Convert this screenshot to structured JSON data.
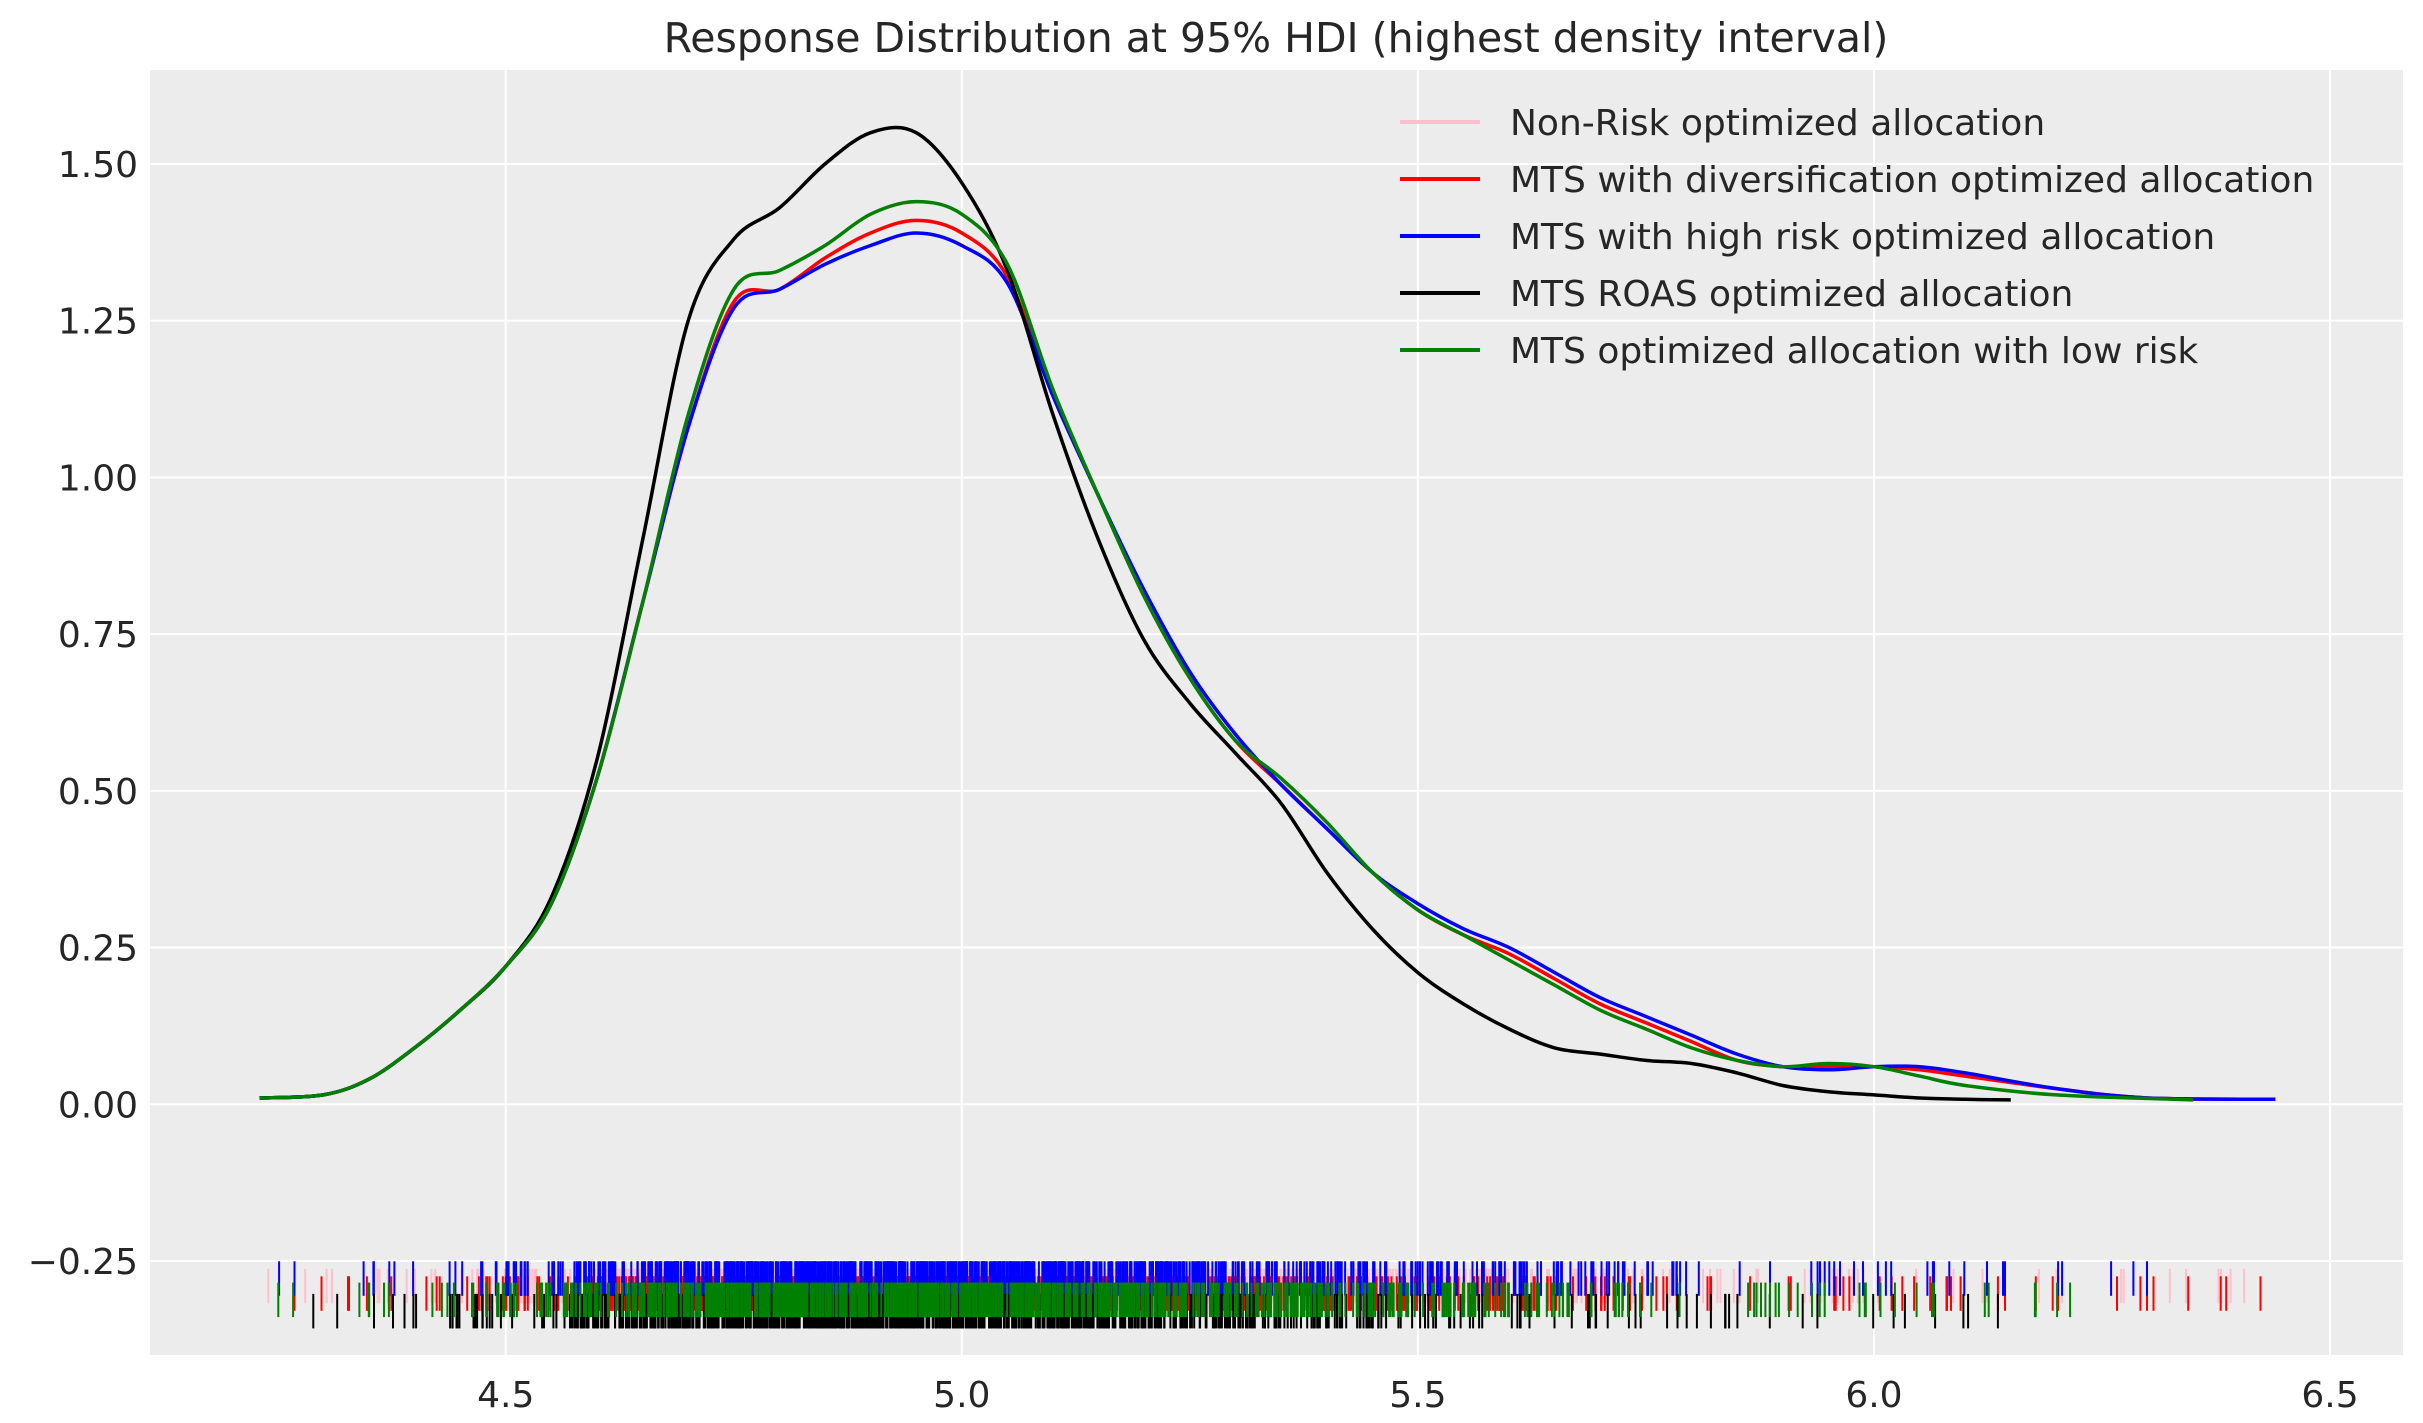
{
  "chart_data": {
    "type": "line",
    "title": "Response Distribution at 95% HDI (highest density interval)",
    "xlabel": "",
    "ylabel": "",
    "xlim": [
      4.11,
      6.58
    ],
    "ylim": [
      -0.4,
      1.65
    ],
    "grid": true,
    "legend_position": "top-right",
    "x_ticks": [
      {
        "value": 4.5,
        "label": "4.5"
      },
      {
        "value": 5.0,
        "label": "5.0"
      },
      {
        "value": 5.5,
        "label": "5.5"
      },
      {
        "value": 6.0,
        "label": "6.0"
      },
      {
        "value": 6.5,
        "label": "6.5"
      }
    ],
    "y_ticks": [
      {
        "value": -0.25,
        "label": "−0.25"
      },
      {
        "value": 0.0,
        "label": "0.00"
      },
      {
        "value": 0.25,
        "label": "0.25"
      },
      {
        "value": 0.5,
        "label": "0.50"
      },
      {
        "value": 0.75,
        "label": "0.75"
      },
      {
        "value": 1.0,
        "label": "1.00"
      },
      {
        "value": 1.25,
        "label": "1.25"
      },
      {
        "value": 1.5,
        "label": "1.50"
      }
    ],
    "series": [
      {
        "name": "Non-Risk optimized allocation",
        "color": "#ffc0cb",
        "rug_offset": 0.0,
        "x": [
          4.23,
          4.3,
          4.35,
          4.4,
          4.45,
          4.5,
          4.55,
          4.6,
          4.65,
          4.7,
          4.75,
          4.8,
          4.85,
          4.9,
          4.95,
          5.0,
          5.05,
          5.1,
          5.15,
          5.2,
          5.25,
          5.3,
          5.35,
          5.4,
          5.45,
          5.5,
          5.55,
          5.6,
          5.65,
          5.7,
          5.75,
          5.8,
          5.85,
          5.9,
          5.95,
          6.0,
          6.05,
          6.1,
          6.2,
          6.3,
          6.44
        ],
        "y": [
          0.01,
          0.015,
          0.04,
          0.09,
          0.15,
          0.22,
          0.32,
          0.52,
          0.8,
          1.08,
          1.28,
          1.3,
          1.35,
          1.39,
          1.41,
          1.39,
          1.32,
          1.13,
          0.97,
          0.81,
          0.68,
          0.58,
          0.51,
          0.44,
          0.37,
          0.31,
          0.27,
          0.24,
          0.2,
          0.16,
          0.13,
          0.1,
          0.07,
          0.06,
          0.06,
          0.06,
          0.055,
          0.045,
          0.025,
          0.01,
          0.008
        ]
      },
      {
        "name": "MTS with diversification optimized allocation",
        "color": "#ff0000",
        "rug_offset": -0.012,
        "x": [
          4.23,
          4.3,
          4.35,
          4.4,
          4.45,
          4.5,
          4.55,
          4.6,
          4.65,
          4.7,
          4.75,
          4.8,
          4.85,
          4.9,
          4.95,
          5.0,
          5.05,
          5.1,
          5.15,
          5.2,
          5.25,
          5.3,
          5.35,
          5.4,
          5.45,
          5.5,
          5.55,
          5.6,
          5.65,
          5.7,
          5.75,
          5.8,
          5.85,
          5.9,
          5.95,
          6.0,
          6.05,
          6.1,
          6.2,
          6.3,
          6.44
        ],
        "y": [
          0.01,
          0.015,
          0.04,
          0.09,
          0.15,
          0.22,
          0.32,
          0.52,
          0.8,
          1.08,
          1.28,
          1.3,
          1.35,
          1.39,
          1.41,
          1.39,
          1.32,
          1.13,
          0.97,
          0.81,
          0.68,
          0.58,
          0.51,
          0.44,
          0.37,
          0.31,
          0.27,
          0.24,
          0.2,
          0.16,
          0.13,
          0.1,
          0.07,
          0.06,
          0.06,
          0.06,
          0.055,
          0.045,
          0.025,
          0.01,
          0.008
        ]
      },
      {
        "name": "MTS with high risk optimized allocation",
        "color": "#0000ff",
        "rug_offset": 0.012,
        "x": [
          4.23,
          4.3,
          4.35,
          4.4,
          4.45,
          4.5,
          4.55,
          4.6,
          4.65,
          4.7,
          4.75,
          4.8,
          4.85,
          4.9,
          4.95,
          5.0,
          5.05,
          5.1,
          5.15,
          5.2,
          5.25,
          5.3,
          5.35,
          5.4,
          5.45,
          5.5,
          5.55,
          5.6,
          5.65,
          5.7,
          5.75,
          5.8,
          5.85,
          5.9,
          5.95,
          6.0,
          6.05,
          6.1,
          6.2,
          6.3,
          6.44
        ],
        "y": [
          0.01,
          0.015,
          0.04,
          0.09,
          0.15,
          0.22,
          0.32,
          0.52,
          0.8,
          1.08,
          1.27,
          1.3,
          1.34,
          1.37,
          1.39,
          1.37,
          1.31,
          1.13,
          0.97,
          0.82,
          0.69,
          0.59,
          0.51,
          0.44,
          0.37,
          0.32,
          0.28,
          0.25,
          0.21,
          0.17,
          0.14,
          0.11,
          0.08,
          0.06,
          0.055,
          0.06,
          0.06,
          0.05,
          0.025,
          0.01,
          0.008
        ]
      },
      {
        "name": "MTS ROAS optimized allocation",
        "color": "#000000",
        "rug_offset": -0.04,
        "x": [
          4.23,
          4.3,
          4.35,
          4.4,
          4.45,
          4.5,
          4.55,
          4.6,
          4.65,
          4.7,
          4.75,
          4.8,
          4.85,
          4.9,
          4.95,
          5.0,
          5.05,
          5.1,
          5.15,
          5.2,
          5.25,
          5.3,
          5.35,
          5.4,
          5.45,
          5.5,
          5.55,
          5.6,
          5.65,
          5.7,
          5.75,
          5.8,
          5.85,
          5.9,
          5.95,
          6.0,
          6.05,
          6.1,
          6.15
        ],
        "y": [
          0.01,
          0.015,
          0.04,
          0.09,
          0.15,
          0.22,
          0.33,
          0.55,
          0.9,
          1.25,
          1.38,
          1.43,
          1.5,
          1.55,
          1.55,
          1.47,
          1.33,
          1.1,
          0.9,
          0.74,
          0.64,
          0.56,
          0.48,
          0.37,
          0.28,
          0.21,
          0.16,
          0.12,
          0.09,
          0.08,
          0.07,
          0.065,
          0.05,
          0.03,
          0.02,
          0.015,
          0.01,
          0.008,
          0.007
        ]
      },
      {
        "name": "MTS optimized allocation with low risk",
        "color": "#008000",
        "rug_offset": -0.022,
        "x": [
          4.23,
          4.3,
          4.35,
          4.4,
          4.45,
          4.5,
          4.55,
          4.6,
          4.65,
          4.7,
          4.75,
          4.8,
          4.85,
          4.9,
          4.95,
          5.0,
          5.05,
          5.1,
          5.15,
          5.2,
          5.25,
          5.3,
          5.35,
          5.4,
          5.45,
          5.5,
          5.55,
          5.6,
          5.65,
          5.7,
          5.75,
          5.8,
          5.85,
          5.9,
          5.95,
          6.0,
          6.05,
          6.1,
          6.2,
          6.35
        ],
        "y": [
          0.01,
          0.015,
          0.04,
          0.09,
          0.15,
          0.22,
          0.32,
          0.52,
          0.8,
          1.1,
          1.3,
          1.33,
          1.37,
          1.42,
          1.44,
          1.42,
          1.34,
          1.14,
          0.97,
          0.81,
          0.68,
          0.58,
          0.52,
          0.45,
          0.37,
          0.31,
          0.27,
          0.23,
          0.19,
          0.15,
          0.12,
          0.09,
          0.07,
          0.06,
          0.065,
          0.06,
          0.045,
          0.03,
          0.015,
          0.007
        ]
      }
    ],
    "rug": {
      "y_center": -0.29,
      "tick_height": 0.055,
      "outlier_min": 4.22,
      "outlier_max": 6.45
    }
  }
}
